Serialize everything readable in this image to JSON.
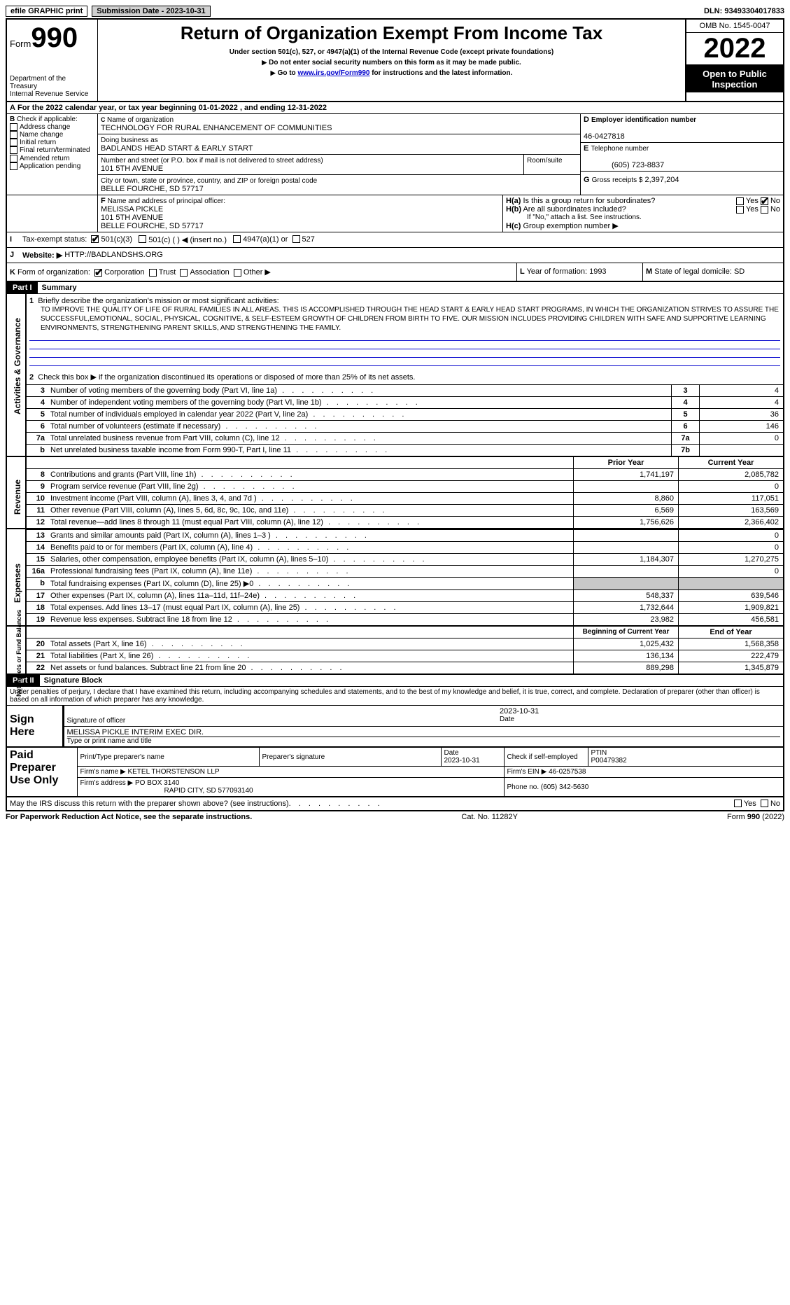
{
  "top": {
    "efile": "efile GRAPHIC print",
    "submission": "Submission Date - 2023-10-31",
    "dln": "DLN: 93493304017833"
  },
  "header": {
    "form": "Form",
    "num": "990",
    "dept": "Department of the Treasury",
    "irs": "Internal Revenue Service",
    "title": "Return of Organization Exempt From Income Tax",
    "sub1": "Under section 501(c), 527, or 4947(a)(1) of the Internal Revenue Code (except private foundations)",
    "sub2": "Do not enter social security numbers on this form as it may be made public.",
    "sub3_pre": "Go to ",
    "sub3_link": "www.irs.gov/Form990",
    "sub3_post": " for instructions and the latest information.",
    "omb": "OMB No. 1545-0047",
    "year": "2022",
    "open": "Open to Public Inspection"
  },
  "A": {
    "text": "For the 2022 calendar year, or tax year beginning 01-01-2022    , and ending 12-31-2022"
  },
  "B": {
    "title": "Check if applicable:",
    "items": [
      "Address change",
      "Name change",
      "Initial return",
      "Final return/terminated",
      "Amended return",
      "Application pending"
    ]
  },
  "C": {
    "name_label": "Name of organization",
    "name": "TECHNOLOGY FOR RURAL ENHANCEMENT OF COMMUNITIES",
    "dba_label": "Doing business as",
    "dba": "BADLANDS HEAD START & EARLY START",
    "street_label": "Number and street (or P.O. box if mail is not delivered to street address)",
    "street": "101 5TH AVENUE",
    "room_label": "Room/suite",
    "city_label": "City or town, state or province, country, and ZIP or foreign postal code",
    "city": "BELLE FOURCHE, SD  57717"
  },
  "D": {
    "label": "Employer identification number",
    "val": "46-0427818"
  },
  "E": {
    "label": "Telephone number",
    "val": "(605) 723-8837"
  },
  "G": {
    "label": "Gross receipts $",
    "val": "2,397,204"
  },
  "F": {
    "label": "Name and address of principal officer:",
    "name": "MELISSA PICKLE",
    "street": "101 5TH AVENUE",
    "city": "BELLE FOURCHE, SD  57717"
  },
  "H": {
    "a": "Is this a group return for subordinates?",
    "b": "Are all subordinates included?",
    "b_note": "If \"No,\" attach a list. See instructions.",
    "c": "Group exemption number ▶"
  },
  "I": {
    "label": "Tax-exempt status:",
    "opts": [
      "501(c)(3)",
      "501(c) (  ) ◀ (insert no.)",
      "4947(a)(1) or",
      "527"
    ]
  },
  "J": {
    "label": "Website: ▶",
    "val": "HTTP://BADLANDSHS.ORG"
  },
  "K": {
    "label": "Form of organization:",
    "opts": [
      "Corporation",
      "Trust",
      "Association",
      "Other ▶"
    ]
  },
  "L": {
    "label": "Year of formation:",
    "val": "1993"
  },
  "M": {
    "label": "State of legal domicile:",
    "val": "SD"
  },
  "part1": {
    "hdr": "Part I",
    "title": "Summary",
    "l1_label": "Briefly describe the organization's mission or most significant activities:",
    "l1": "TO IMPROVE THE QUALITY OF LIFE OF RURAL FAMILIES IN ALL AREAS. THIS IS ACCOMPLISHED THROUGH THE HEAD START & EARLY HEAD START PROGRAMS, IN WHICH THE ORGANIZATION STRIVES TO ASSURE THE SUCCESSFUL,EMOTIONAL, SOCIAL, PHYSICAL, COGNITIVE, & SELF-ESTEEM GROWTH OF CHILDREN FROM BIRTH TO FIVE. OUR MISSION INCLUDES PROVIDING CHILDREN WITH SAFE AND SUPPORTIVE LEARNING ENVIRONMENTS, STRENGTHENING PARENT SKILLS, AND STRENGTHENING THE FAMILY.",
    "l2": "Check this box ▶      if the organization discontinued its operations or disposed of more than 25% of its net assets.",
    "gov_lines": [
      {
        "n": "3",
        "d": "Number of voting members of the governing body (Part VI, line 1a)",
        "box": "3",
        "v": "4"
      },
      {
        "n": "4",
        "d": "Number of independent voting members of the governing body (Part VI, line 1b)",
        "box": "4",
        "v": "4"
      },
      {
        "n": "5",
        "d": "Total number of individuals employed in calendar year 2022 (Part V, line 2a)",
        "box": "5",
        "v": "36"
      },
      {
        "n": "6",
        "d": "Total number of volunteers (estimate if necessary)",
        "box": "6",
        "v": "146"
      },
      {
        "n": "7a",
        "d": "Total unrelated business revenue from Part VIII, column (C), line 12",
        "box": "7a",
        "v": "0"
      },
      {
        "n": "b",
        "d": "Net unrelated business taxable income from Form 990-T, Part I, line 11",
        "box": "7b",
        "v": ""
      }
    ],
    "col_prior": "Prior Year",
    "col_current": "Current Year",
    "rev_lines": [
      {
        "n": "8",
        "d": "Contributions and grants (Part VIII, line 1h)",
        "p": "1,741,197",
        "c": "2,085,782"
      },
      {
        "n": "9",
        "d": "Program service revenue (Part VIII, line 2g)",
        "p": "",
        "c": "0"
      },
      {
        "n": "10",
        "d": "Investment income (Part VIII, column (A), lines 3, 4, and 7d )",
        "p": "8,860",
        "c": "117,051"
      },
      {
        "n": "11",
        "d": "Other revenue (Part VIII, column (A), lines 5, 6d, 8c, 9c, 10c, and 11e)",
        "p": "6,569",
        "c": "163,569"
      },
      {
        "n": "12",
        "d": "Total revenue—add lines 8 through 11 (must equal Part VIII, column (A), line 12)",
        "p": "1,756,626",
        "c": "2,366,402"
      }
    ],
    "exp_lines": [
      {
        "n": "13",
        "d": "Grants and similar amounts paid (Part IX, column (A), lines 1–3 )",
        "p": "",
        "c": "0"
      },
      {
        "n": "14",
        "d": "Benefits paid to or for members (Part IX, column (A), line 4)",
        "p": "",
        "c": "0"
      },
      {
        "n": "15",
        "d": "Salaries, other compensation, employee benefits (Part IX, column (A), lines 5–10)",
        "p": "1,184,307",
        "c": "1,270,275"
      },
      {
        "n": "16a",
        "d": "Professional fundraising fees (Part IX, column (A), line 11e)",
        "p": "",
        "c": "0"
      },
      {
        "n": "b",
        "d": "Total fundraising expenses (Part IX, column (D), line 25) ▶0",
        "p": "SHADE",
        "c": "SHADE"
      },
      {
        "n": "17",
        "d": "Other expenses (Part IX, column (A), lines 11a–11d, 11f–24e)",
        "p": "548,337",
        "c": "639,546"
      },
      {
        "n": "18",
        "d": "Total expenses. Add lines 13–17 (must equal Part IX, column (A), line 25)",
        "p": "1,732,644",
        "c": "1,909,821"
      },
      {
        "n": "19",
        "d": "Revenue less expenses. Subtract line 18 from line 12",
        "p": "23,982",
        "c": "456,581"
      }
    ],
    "col_begin": "Beginning of Current Year",
    "col_end": "End of Year",
    "net_lines": [
      {
        "n": "20",
        "d": "Total assets (Part X, line 16)",
        "p": "1,025,432",
        "c": "1,568,358"
      },
      {
        "n": "21",
        "d": "Total liabilities (Part X, line 26)",
        "p": "136,134",
        "c": "222,479"
      },
      {
        "n": "22",
        "d": "Net assets or fund balances. Subtract line 21 from line 20",
        "p": "889,298",
        "c": "1,345,879"
      }
    ],
    "vtab_gov": "Activities & Governance",
    "vtab_rev": "Revenue",
    "vtab_exp": "Expenses",
    "vtab_net": "Net Assets or Fund Balances"
  },
  "part2": {
    "hdr": "Part II",
    "title": "Signature Block",
    "decl": "Under penalties of perjury, I declare that I have examined this return, including accompanying schedules and statements, and to the best of my knowledge and belief, it is true, correct, and complete. Declaration of preparer (other than officer) is based on all information of which preparer has any knowledge.",
    "sign_here": "Sign Here",
    "sig_officer": "Signature of officer",
    "date": "Date",
    "sig_date": "2023-10-31",
    "name_title": "MELISSA PICKLE  INTERIM EXEC DIR.",
    "type_name": "Type or print name and title",
    "paid": "Paid Preparer Use Only",
    "p_name_l": "Print/Type preparer's name",
    "p_sig_l": "Preparer's signature",
    "p_date_l": "Date",
    "p_date": "2023-10-31",
    "p_check": "Check        if self-employed",
    "p_ptin_l": "PTIN",
    "p_ptin": "P00479382",
    "firm_name_l": "Firm's name    ▶",
    "firm_name": "KETEL THORSTENSON LLP",
    "firm_ein_l": "Firm's EIN ▶",
    "firm_ein": "46-0257538",
    "firm_addr_l": "Firm's address ▶",
    "firm_addr1": "PO BOX 3140",
    "firm_addr2": "RAPID CITY, SD  577093140",
    "phone_l": "Phone no.",
    "phone": "(605) 342-5630",
    "may_irs": "May the IRS discuss this return with the preparer shown above? (see instructions)"
  },
  "footer": {
    "l": "For Paperwork Reduction Act Notice, see the separate instructions.",
    "c": "Cat. No. 11282Y",
    "r": "Form 990 (2022)"
  },
  "yes": "Yes",
  "no": "No"
}
